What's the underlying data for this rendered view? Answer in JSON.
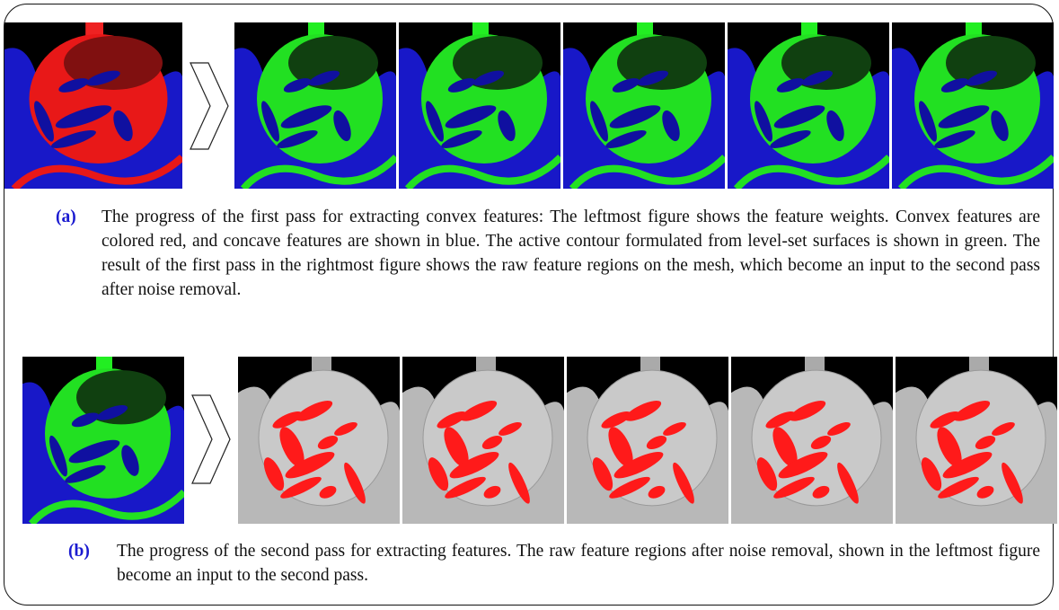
{
  "figure": {
    "panels": [
      {
        "label": "(a)",
        "caption": "The progress of the first pass for extracting convex features: The leftmost figure shows the feature weights. Convex features are colored red, and concave features are shown in blue. The active contour formulated from level-set surfaces is shown in green. The result of the first pass in the rightmost figure shows the raw feature regions on the mesh, which become an input to the second pass after noise removal."
      },
      {
        "label": "(b)",
        "caption": "The progress of the second pass for extracting features. The raw feature regions after noise removal, shown in the leftmost figure become an input to the second pass."
      }
    ]
  }
}
